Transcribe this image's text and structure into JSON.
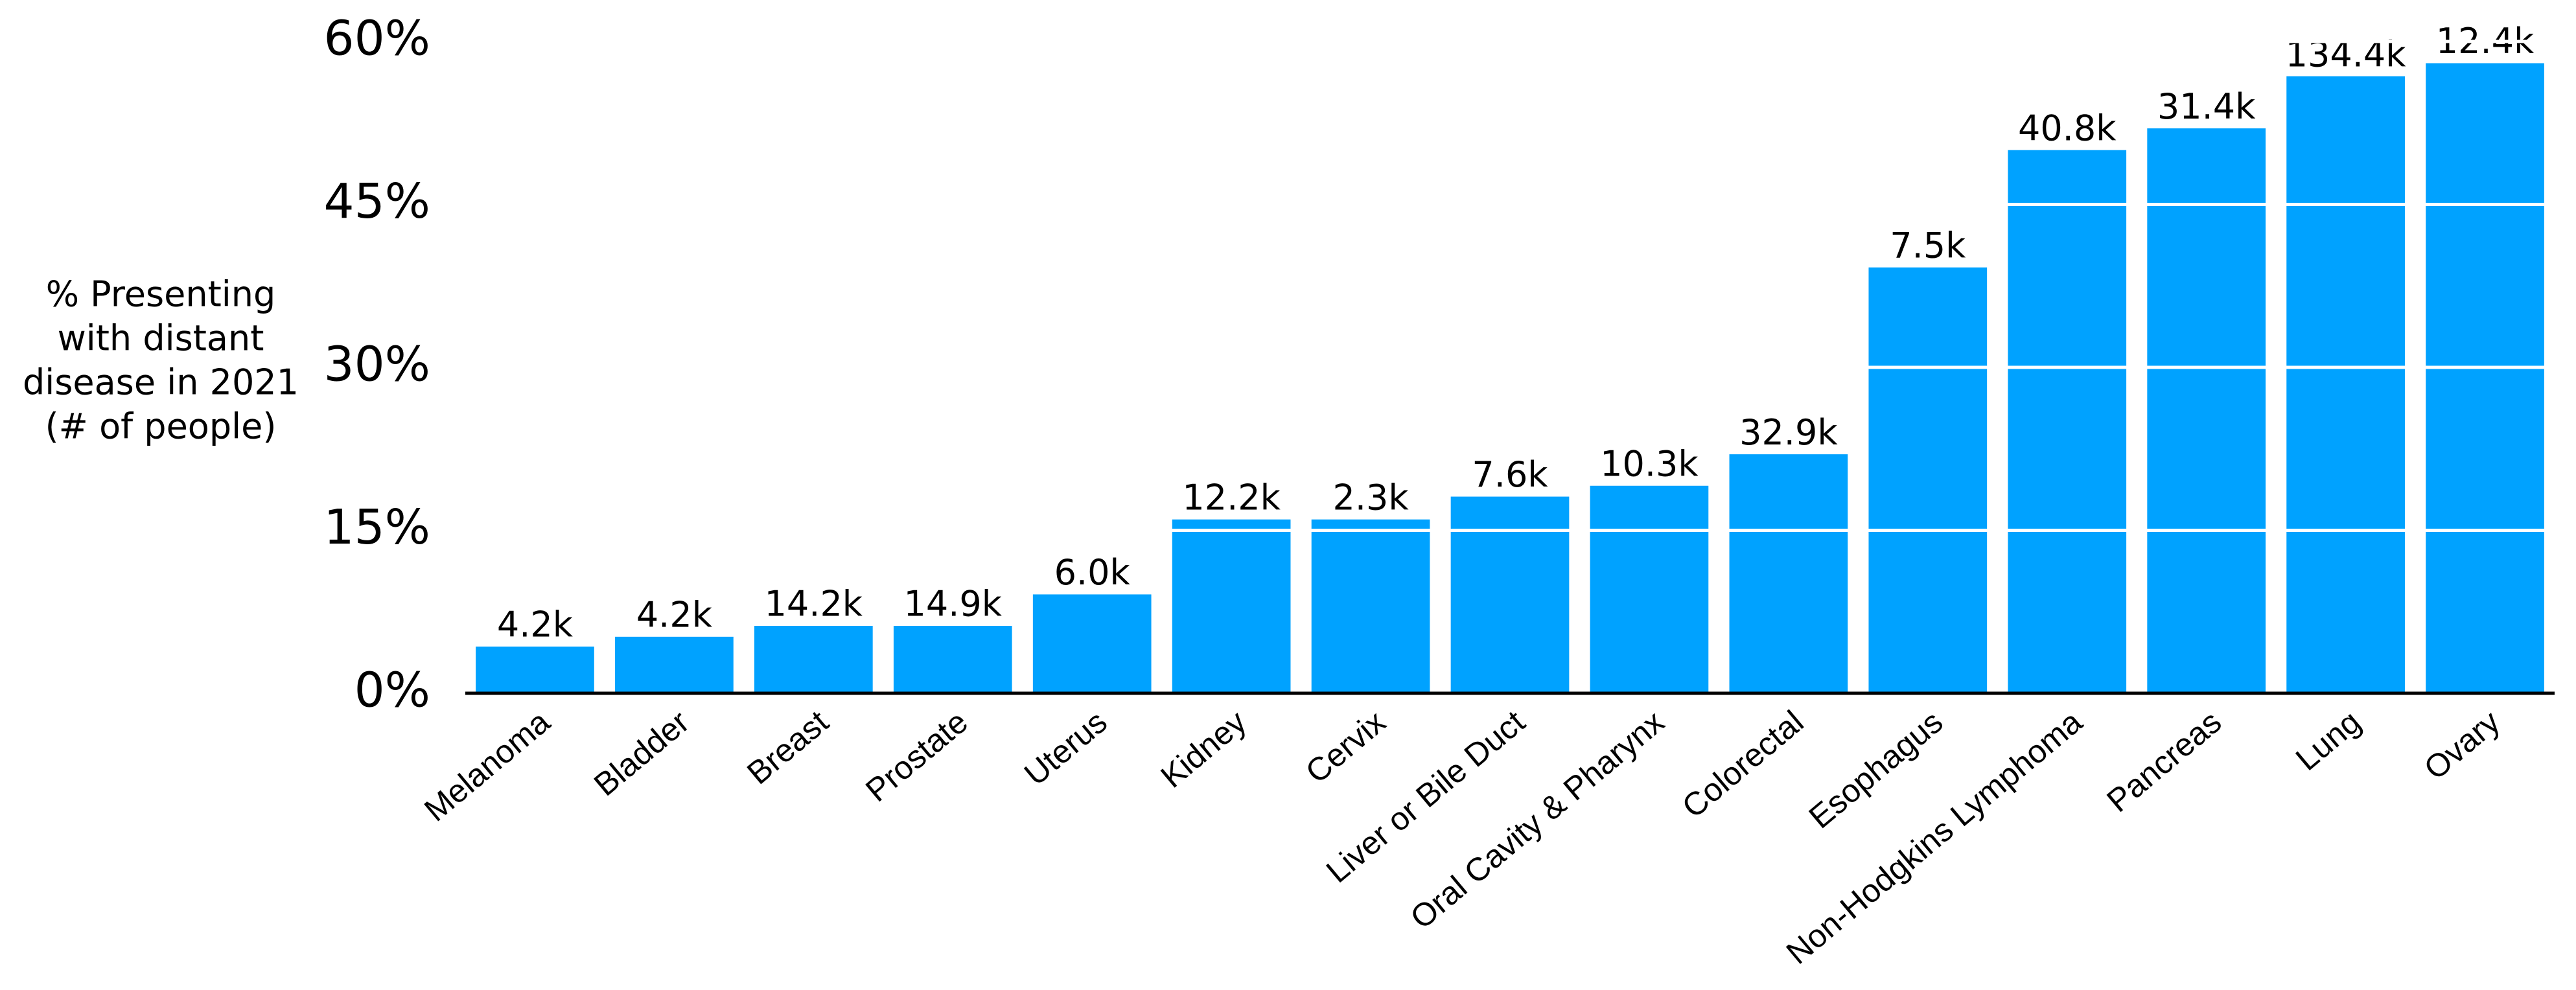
{
  "chart_data": {
    "type": "bar",
    "ylabel": [
      "% Presenting",
      "with distant",
      "disease in 2021",
      "(# of people)"
    ],
    "categories": [
      "Melanoma",
      "Bladder",
      "Breast",
      "Prostate",
      "Uterus",
      "Kidney",
      "Cervix",
      "Liver or Bile Duct",
      "Oral Cavity & Pharynx",
      "Colorectal",
      "Esophagus",
      "Non-Hodgkins Lymphoma",
      "Pancreas",
      "Lung",
      "Ovary"
    ],
    "values": [
      4.3,
      5.2,
      6.2,
      6.2,
      9.1,
      16.0,
      16.0,
      18.1,
      19.1,
      22.0,
      39.2,
      50.0,
      52.0,
      56.8,
      58.0
    ],
    "counts": [
      4200,
      4200,
      14200,
      14900,
      6000,
      12200,
      2300,
      7600,
      10300,
      32900,
      7500,
      40800,
      31400,
      134400,
      12400
    ],
    "count_labels": [
      "4.2k",
      "4.2k",
      "14.2k",
      "14.9k",
      "6.0k",
      "12.2k",
      "2.3k",
      "7.6k",
      "10.3k",
      "32.9k",
      "7.5k",
      "40.8k",
      "31.4k",
      "134.4k",
      "12.4k"
    ],
    "color": "#00a2ff",
    "ylim": [
      0,
      60
    ],
    "yticks": [
      {
        "value": 0,
        "label": "0%"
      },
      {
        "value": 15,
        "label": "15%"
      },
      {
        "value": 30,
        "label": "30%"
      },
      {
        "value": 45,
        "label": "45%"
      },
      {
        "value": 60,
        "label": "60%"
      }
    ],
    "grid": true,
    "grid_color": "#ffffff"
  }
}
